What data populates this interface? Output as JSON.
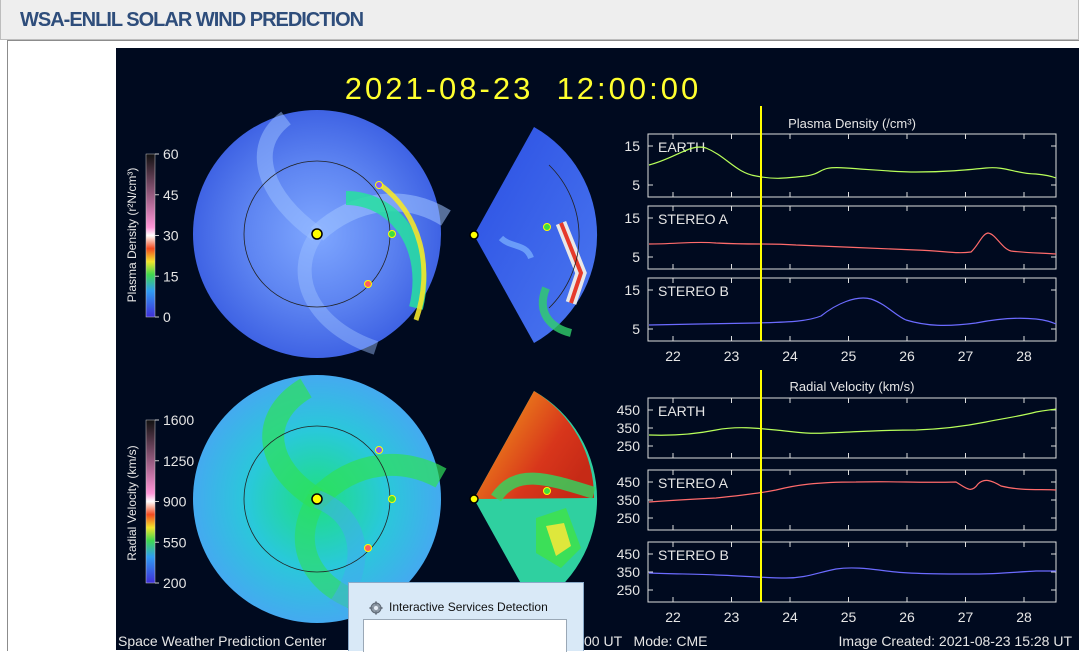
{
  "header": {
    "title": "WSA-ENLIL SOLAR WIND PREDICTION"
  },
  "viz": {
    "timestamp": "2021-08-23  12:00:00",
    "density_colorbar": {
      "label": "Plasma Density (r²N/cm³)",
      "ticks": [
        "60",
        "45",
        "30",
        "15",
        "0"
      ]
    },
    "velocity_colorbar": {
      "label": "Radial Velocity (km/s)",
      "ticks": [
        "1600",
        "1250",
        "900",
        "550",
        "200"
      ]
    },
    "density_panel": {
      "title": "Plasma Density (/cm³)",
      "rows": [
        {
          "name": "EARTH",
          "ticks": [
            "15",
            "5"
          ]
        },
        {
          "name": "STEREO A",
          "ticks": [
            "15",
            "5"
          ]
        },
        {
          "name": "STEREO B",
          "ticks": [
            "15",
            "5"
          ]
        }
      ],
      "x_ticks": [
        "22",
        "23",
        "24",
        "25",
        "26",
        "27",
        "28"
      ]
    },
    "velocity_panel": {
      "title": "Radial Velocity (km/s)",
      "rows": [
        {
          "name": "EARTH",
          "ticks": [
            "450",
            "350",
            "250"
          ]
        },
        {
          "name": "STEREO A",
          "ticks": [
            "450",
            "350",
            "250"
          ]
        },
        {
          "name": "STEREO B",
          "ticks": [
            "450",
            "350",
            "250"
          ]
        }
      ],
      "x_ticks": [
        "22",
        "23",
        "24",
        "25",
        "26",
        "27",
        "28"
      ]
    },
    "footer": {
      "left": "Space Weather Prediction Center",
      "middle": "00 UT   Mode: CME",
      "right": "Image Created: 2021-08-23 15:28 UT"
    },
    "colors": {
      "earth": "#b8ff5a",
      "stereo_a": "#ff6b6b",
      "stereo_b": "#6b6bff",
      "marker": "#ffff00"
    }
  },
  "dialog": {
    "title": "Interactive Services Detection",
    "icon": "gear-icon"
  }
}
